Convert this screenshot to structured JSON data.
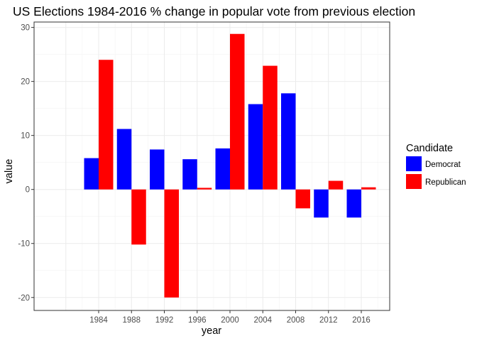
{
  "chart_data": {
    "type": "bar",
    "title": "US Elections 1984-2016 % change in popular vote from previous election",
    "xlabel": "year",
    "ylabel": "value",
    "categories": [
      "1984",
      "1988",
      "1992",
      "1996",
      "2000",
      "2004",
      "2008",
      "2012",
      "2016"
    ],
    "series": [
      {
        "name": "Democrat",
        "color": "#0000ff",
        "values": [
          5.8,
          11.2,
          7.4,
          5.6,
          7.6,
          15.8,
          17.8,
          -5.2,
          -5.2
        ]
      },
      {
        "name": "Republican",
        "color": "#ff0000",
        "values": [
          24.0,
          -10.2,
          -20.0,
          0.3,
          28.8,
          22.9,
          -3.5,
          1.6,
          0.4
        ]
      }
    ],
    "ylim": [
      -22.4,
      31.0
    ],
    "yticks": [
      -20,
      -10,
      0,
      10,
      20,
      30
    ],
    "ytick_labels": [
      "-20",
      "-10",
      "0",
      "10",
      "20",
      "30"
    ],
    "grid": true,
    "legend": {
      "title": "Candidate",
      "position": "right",
      "items": [
        "Democrat",
        "Republican"
      ]
    }
  }
}
